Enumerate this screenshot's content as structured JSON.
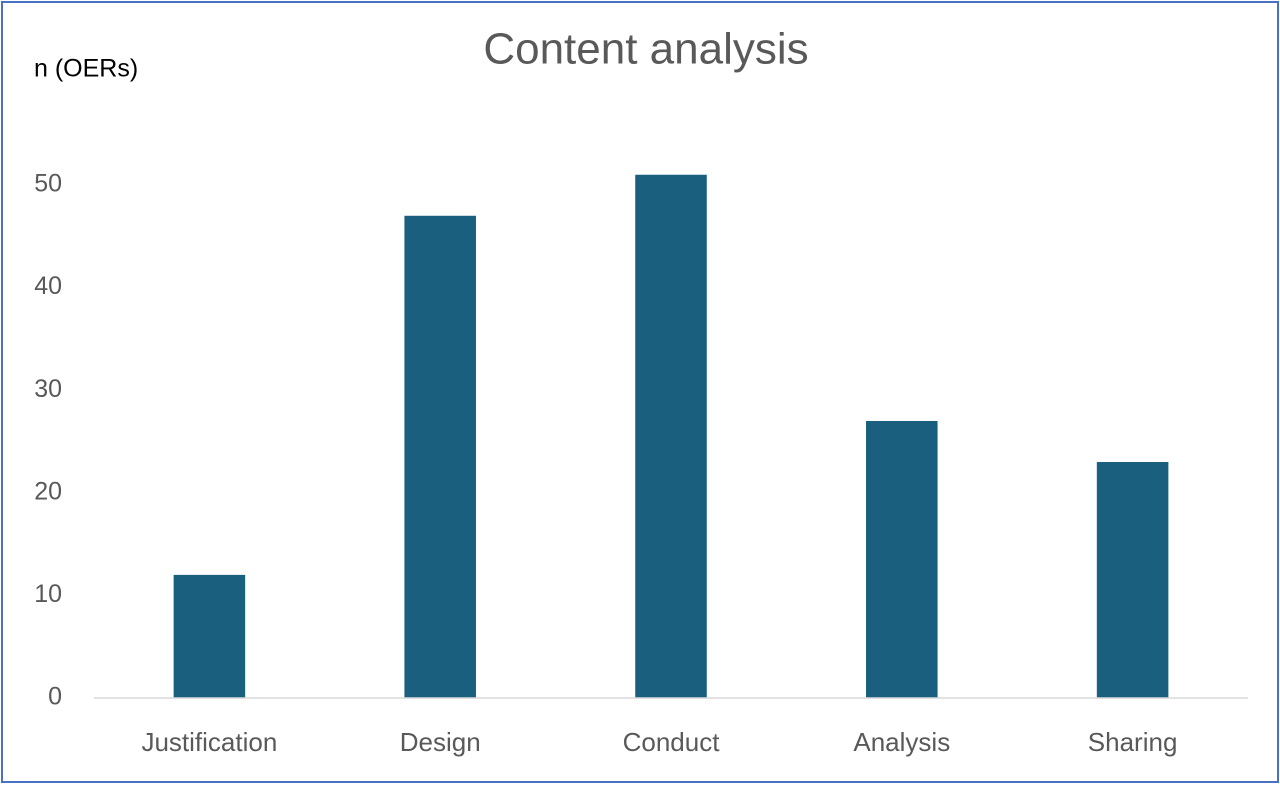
{
  "chart_data": {
    "type": "bar",
    "title": "Content analysis",
    "y_label": "n (OERs)",
    "categories": [
      "Justification",
      "Design",
      "Conduct",
      "Analysis",
      "Sharing"
    ],
    "values": [
      12,
      47,
      51,
      27,
      23
    ],
    "color": "#1a5f7e",
    "ylim": [
      0,
      60
    ],
    "yticks": [
      0,
      10,
      20,
      30,
      40,
      50
    ],
    "grid": false
  }
}
